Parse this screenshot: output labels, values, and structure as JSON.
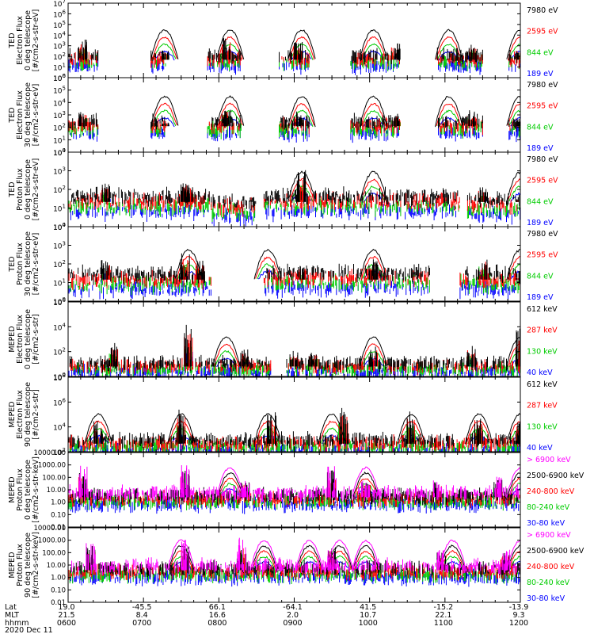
{
  "figure": {
    "x_axis": {
      "rows": [
        {
          "label": "Lat",
          "values": [
            "19.0",
            "-45.5",
            "66.1",
            "-64.1",
            "41.5",
            "-15.2",
            "-13.9"
          ]
        },
        {
          "label": "MLT",
          "values": [
            "21.5",
            "8.4",
            "16.6",
            "2.0",
            "10.7",
            "22.1",
            "9.3"
          ]
        },
        {
          "label": "hhmm",
          "values": [
            "0600",
            "0700",
            "0800",
            "0900",
            "1000",
            "1100",
            "1200"
          ]
        }
      ],
      "date": "2020 Dec 11"
    }
  },
  "chart_data": [
    {
      "type": "line",
      "scale": "log",
      "ylabel": [
        "TED",
        "Electron Flux",
        "0 deg telescope",
        "[#/cm2-s-str-eV]"
      ],
      "yticks": [
        "10^0",
        "10^1",
        "10^2",
        "10^3",
        "10^4",
        "10^5",
        "10^6",
        "10^7"
      ],
      "ylim": [
        0,
        7
      ],
      "legend": [
        {
          "label": "7980 eV",
          "color": "#000000"
        },
        {
          "label": "2595 eV",
          "color": "#ff0000"
        },
        {
          "label": "844 eV",
          "color": "#00cc00"
        },
        {
          "label": "189 eV",
          "color": "#0000ff"
        }
      ],
      "series_shape": {
        "bursts": [
          [
            0.19,
            3.6
          ],
          [
            1.28,
            2.6
          ],
          [
            2.1,
            3.8
          ],
          [
            3.05,
            3.4
          ],
          [
            4.35,
            3.3
          ],
          [
            5.35,
            3.2
          ],
          [
            6.0,
            2.6
          ]
        ],
        "base_ranges": [
          [
            0.0,
            0.4,
            1.7
          ],
          [
            1.1,
            1.3,
            1.7
          ],
          [
            1.85,
            2.3,
            1.7
          ],
          [
            2.8,
            3.2,
            1.7
          ],
          [
            3.75,
            4.4,
            1.7
          ],
          [
            4.9,
            5.5,
            1.7
          ],
          [
            5.85,
            6.0,
            1.7
          ]
        ],
        "arch_centers": [
          1.28,
          2.15,
          3.1,
          4.05,
          5.05,
          6.0
        ]
      }
    },
    {
      "type": "line",
      "scale": "log",
      "ylabel": [
        "TED",
        "Electron Flux",
        "30 deg telescope",
        "[#/cm2-s-str-eV]"
      ],
      "yticks": [
        "10^0",
        "10^1",
        "10^2",
        "10^3",
        "10^4",
        "10^5",
        "10^6"
      ],
      "ylim": [
        0,
        6
      ],
      "legend": [
        {
          "label": "7980 eV",
          "color": "#000000"
        },
        {
          "label": "2595 eV",
          "color": "#ff0000"
        },
        {
          "label": "844 eV",
          "color": "#00cc00"
        },
        {
          "label": "189 eV",
          "color": "#0000ff"
        }
      ],
      "series_shape": {
        "bursts": [
          [
            0.19,
            3.4
          ],
          [
            1.28,
            2.4
          ],
          [
            2.1,
            3.6
          ],
          [
            3.05,
            3.3
          ],
          [
            4.35,
            3.1
          ],
          [
            5.35,
            3.4
          ],
          [
            6.0,
            2.6
          ]
        ],
        "base_ranges": [
          [
            0.0,
            0.4,
            2.1
          ],
          [
            1.1,
            1.3,
            2.1
          ],
          [
            1.85,
            2.3,
            2.1
          ],
          [
            2.8,
            3.2,
            2.1
          ],
          [
            3.75,
            4.4,
            2.1
          ],
          [
            4.9,
            5.5,
            2.1
          ],
          [
            5.85,
            6.0,
            2.1
          ]
        ],
        "arch_centers": [
          1.28,
          2.15,
          3.1,
          4.05,
          5.05,
          6.0
        ]
      }
    },
    {
      "type": "line",
      "scale": "log",
      "ylabel": [
        "TED",
        "Proton Flux",
        "0 deg telescope",
        "[#/cm2-s-str-eV]"
      ],
      "yticks": [
        "10^0",
        "10^1",
        "10^2",
        "10^3",
        "10^4"
      ],
      "ylim": [
        0,
        4.5
      ],
      "legend": [
        {
          "label": "7980 eV",
          "color": "#000000"
        },
        {
          "label": "2595 eV",
          "color": "#ff0000"
        },
        {
          "label": "844 eV",
          "color": "#00cc00"
        },
        {
          "label": "189 eV",
          "color": "#0000ff"
        }
      ],
      "series_shape": {
        "bursts": [
          [
            0.5,
            2.6
          ],
          [
            1.55,
            2.8
          ],
          [
            1.6,
            2.6
          ],
          [
            3.1,
            3.6
          ],
          [
            5.5,
            2.4
          ],
          [
            6.0,
            1.7
          ]
        ],
        "base_ranges": [
          [
            0.0,
            1.9,
            1.5
          ],
          [
            1.9,
            2.5,
            1.2
          ],
          [
            2.6,
            5.2,
            1.5
          ],
          [
            5.3,
            6.0,
            1.3
          ]
        ],
        "arch_centers": [
          3.1,
          4.05,
          6.0
        ]
      }
    },
    {
      "type": "line",
      "scale": "log",
      "ylabel": [
        "TED",
        "Proton Flux",
        "30 deg telescope",
        "[#/cm2-s-str-eV]"
      ],
      "yticks": [
        "10^0",
        "10^1",
        "10^2",
        "10^3",
        "10^4"
      ],
      "ylim": [
        0,
        4.5
      ],
      "legend": [
        {
          "label": "7980 eV",
          "color": "#000000"
        },
        {
          "label": "2595 eV",
          "color": "#ff0000"
        },
        {
          "label": "844 eV",
          "color": "#00cc00"
        },
        {
          "label": "189 eV",
          "color": "#0000ff"
        }
      ],
      "series_shape": {
        "bursts": [
          [
            0.5,
            2.5
          ],
          [
            1.55,
            2.9
          ],
          [
            1.75,
            2.5
          ],
          [
            3.1,
            2.2
          ],
          [
            4.05,
            2.6
          ],
          [
            5.5,
            2.7
          ],
          [
            6.0,
            1.4
          ]
        ],
        "base_ranges": [
          [
            0.0,
            1.9,
            1.3
          ],
          [
            2.6,
            4.8,
            1.4
          ],
          [
            5.2,
            6.0,
            1.3
          ]
        ],
        "arch_centers": [
          1.6,
          2.65,
          4.05,
          6.0
        ]
      }
    },
    {
      "type": "line",
      "scale": "log",
      "ylabel": [
        "MEPED",
        "Electron Flux",
        "0 deg telescope",
        "[#/cm2-s-str]"
      ],
      "yticks": [
        "10^0",
        "10^2",
        "10^4",
        "10^6"
      ],
      "ylim": [
        -0.5,
        7
      ],
      "legend": [
        {
          "label": "612 keV",
          "color": "#000000"
        },
        {
          "label": "287 keV",
          "color": "#ff0000"
        },
        {
          "label": "130 keV",
          "color": "#00cc00"
        },
        {
          "label": "40 keV",
          "color": "#0000ff"
        }
      ],
      "series_shape": {
        "bursts": [
          [
            0.6,
            2.9
          ],
          [
            1.6,
            4.8
          ],
          [
            2.35,
            2.3
          ],
          [
            3.0,
            2.1
          ],
          [
            3.25,
            2.2
          ],
          [
            4.05,
            2.6
          ],
          [
            5.35,
            2.6
          ],
          [
            6.0,
            4.4
          ]
        ],
        "base_ranges": [
          [
            0.0,
            2.7,
            0.5
          ],
          [
            2.9,
            6.0,
            0.5
          ]
        ],
        "arch_centers": [
          2.1,
          4.05,
          6.0
        ]
      }
    },
    {
      "type": "line",
      "scale": "log",
      "ylabel": [
        "MEPED",
        "Electron Flux",
        "90 deg telescope",
        "[#/cm2-s-str]"
      ],
      "yticks": [
        "10^2",
        "10^4",
        "10^6",
        "10^8"
      ],
      "ylim": [
        1.5,
        8
      ],
      "legend": [
        {
          "label": "612 keV",
          "color": "#000000"
        },
        {
          "label": "287 keV",
          "color": "#ff0000"
        },
        {
          "label": "130 keV",
          "color": "#00cc00"
        },
        {
          "label": "40 keV",
          "color": "#0000ff"
        }
      ],
      "series_shape": {
        "bursts": [
          [
            0.4,
            4.2
          ],
          [
            1.5,
            5.5
          ],
          [
            2.7,
            5.0
          ],
          [
            3.65,
            5.4
          ],
          [
            4.55,
            5.1
          ],
          [
            5.45,
            4.9
          ],
          [
            6.0,
            4.3
          ]
        ],
        "base_ranges": [
          [
            0.0,
            6.0,
            2.2
          ]
        ],
        "arch_centers": [
          0.4,
          1.5,
          2.65,
          3.5,
          4.55,
          5.45,
          6.0
        ]
      }
    },
    {
      "type": "line",
      "scale": "log",
      "ylabel": [
        "MEPED",
        "Proton Flux",
        "0 deg telescope",
        "[#/cm2-s-str-keV]"
      ],
      "yticks": [
        "0.01",
        "0.10",
        "1.00",
        "10.00",
        "100.00",
        "1000.00",
        "10000.00"
      ],
      "ylim": [
        -2,
        4
      ],
      "legend": [
        {
          "label": "> 6900 keV",
          "color": "#ff00ff"
        },
        {
          "label": "2500-6900 keV",
          "color": "#000000"
        },
        {
          "label": "240-800 keV",
          "color": "#ff0000"
        },
        {
          "label": "80-240 keV",
          "color": "#00cc00"
        },
        {
          "label": "30-80 keV",
          "color": "#0000ff"
        }
      ],
      "series_shape": {
        "bursts": [
          [
            0.2,
            3.1
          ],
          [
            1.55,
            3.0
          ],
          [
            2.35,
            1.9
          ],
          [
            3.5,
            3.1
          ],
          [
            3.95,
            1.9
          ],
          [
            4.9,
            1.9
          ],
          [
            5.7,
            2.1
          ]
        ],
        "base_ranges": [
          [
            0.0,
            6.0,
            0.4
          ]
        ],
        "arch_centers": [
          2.15,
          3.95,
          6.0
        ]
      }
    },
    {
      "type": "line",
      "scale": "log",
      "ylabel": [
        "MEPED",
        "Proton Flux",
        "90 deg telescope",
        "[#/cm2-s-str-keV]"
      ],
      "yticks": [
        "0.01",
        "0.10",
        "1.00",
        "10.00",
        "100.00",
        "1000.00",
        "10000.00"
      ],
      "ylim": [
        -2,
        4
      ],
      "legend": [
        {
          "label": "> 6900 keV",
          "color": "#ff00ff"
        },
        {
          "label": "2500-6900 keV",
          "color": "#000000"
        },
        {
          "label": "240-800 keV",
          "color": "#ff0000"
        },
        {
          "label": "80-240 keV",
          "color": "#00cc00"
        },
        {
          "label": "30-80 keV",
          "color": "#0000ff"
        }
      ],
      "series_shape": {
        "bursts": [
          [
            0.3,
            3.0
          ],
          [
            1.55,
            3.1
          ],
          [
            2.3,
            3.2
          ],
          [
            3.5,
            2.9
          ],
          [
            4.95,
            2.3
          ],
          [
            5.8,
            2.3
          ]
        ],
        "base_ranges": [
          [
            0.0,
            6.0,
            0.6
          ]
        ],
        "arch_centers": [
          1.5,
          2.6,
          3.2,
          3.6,
          3.95,
          5.1,
          6.0
        ]
      }
    }
  ]
}
